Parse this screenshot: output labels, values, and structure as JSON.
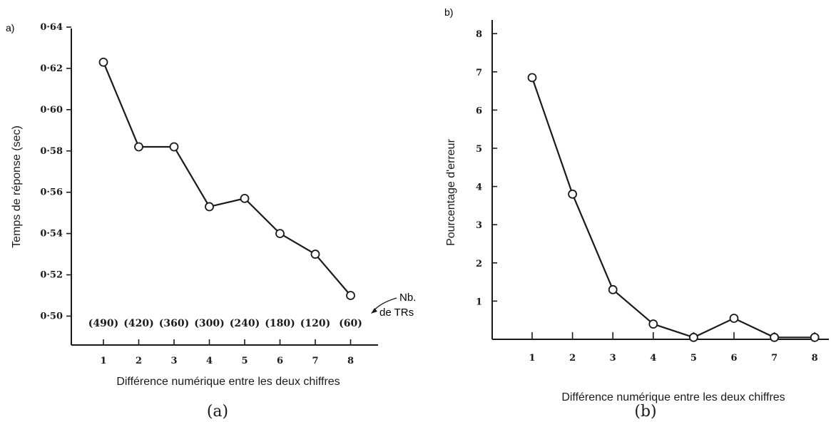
{
  "chart_data": [
    {
      "type": "line",
      "panel_label": "a)",
      "caption": "(a)",
      "xlabel": "Différence numérique entre les deux chiffres",
      "ylabel": "Temps de réponse (sec)",
      "x": [
        1,
        2,
        3,
        4,
        5,
        6,
        7,
        8
      ],
      "y": [
        0.623,
        0.582,
        0.582,
        0.553,
        0.557,
        0.54,
        0.53,
        0.51
      ],
      "x_ticks": [
        "1",
        "2",
        "3",
        "4",
        "5",
        "6",
        "7",
        "8"
      ],
      "y_ticks": [
        0.5,
        0.52,
        0.54,
        0.56,
        0.58,
        0.6,
        0.62,
        0.64
      ],
      "y_tick_labels": [
        "0·50",
        "0·52",
        "0·54",
        "0·56",
        "0·58",
        "0·60",
        "0·62",
        "0·64"
      ],
      "ylim": [
        0.486,
        0.64
      ],
      "counts": [
        "(490)",
        "(420)",
        "(360)",
        "(300)",
        "(240)",
        "(180)",
        "(120)",
        "(60)"
      ],
      "annotation": [
        "Nb.",
        "de TRs"
      ]
    },
    {
      "type": "line",
      "panel_label": "b)",
      "caption": "(b)",
      "xlabel": "Différence numérique entre les deux chiffres",
      "ylabel": "Pourcentage d'erreur",
      "x": [
        1,
        2,
        3,
        4,
        5,
        6,
        7,
        8
      ],
      "y": [
        6.85,
        3.8,
        1.3,
        0.4,
        0.05,
        0.55,
        0.05,
        0.05
      ],
      "x_ticks": [
        "1",
        "2",
        "3",
        "4",
        "5",
        "6",
        "7",
        "8"
      ],
      "y_ticks": [
        1,
        2,
        3,
        4,
        5,
        6,
        7,
        8
      ],
      "y_tick_labels": [
        "1",
        "2",
        "3",
        "4",
        "5",
        "6",
        "7",
        "8"
      ],
      "ylim": [
        0,
        8.5
      ]
    }
  ]
}
